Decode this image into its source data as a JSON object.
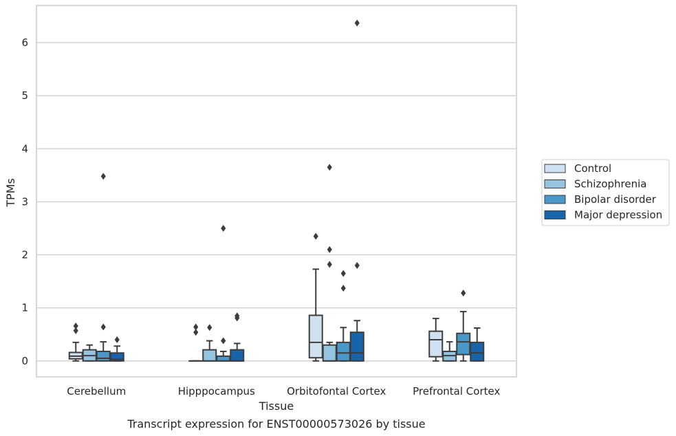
{
  "chart_data": {
    "type": "box",
    "caption": "Transcript expression for ENST00000573026 by tissue",
    "xlabel": "Tissue",
    "ylabel": "TPMs",
    "ylim": [
      -0.3,
      6.7
    ],
    "yticks": [
      0,
      1,
      2,
      3,
      4,
      5,
      6
    ],
    "grid": "horizontal",
    "legend_position": "right",
    "categories": [
      "Cerebellum",
      "Hipppocampus",
      "Orbitofontal Cortex",
      "Prefrontal Cortex"
    ],
    "series": [
      {
        "name": "Control",
        "color": "#d0e1f2",
        "boxes": [
          {
            "whislo": 0.0,
            "q1": 0.04,
            "med": 0.09,
            "q3": 0.16,
            "whishi": 0.35,
            "fliers": [
              0.57,
              0.66
            ]
          },
          {
            "whislo": 0.0,
            "q1": 0.0,
            "med": 0.0,
            "q3": 0.0,
            "whishi": 0.0,
            "fliers": [
              0.54,
              0.64
            ]
          },
          {
            "whislo": 0.0,
            "q1": 0.06,
            "med": 0.35,
            "q3": 0.86,
            "whishi": 1.73,
            "fliers": [
              2.35
            ]
          },
          {
            "whislo": 0.0,
            "q1": 0.08,
            "med": 0.4,
            "q3": 0.56,
            "whishi": 0.8,
            "fliers": []
          }
        ]
      },
      {
        "name": "Schizophrenia",
        "color": "#94c4df",
        "boxes": [
          {
            "whislo": 0.0,
            "q1": 0.0,
            "med": 0.1,
            "q3": 0.21,
            "whishi": 0.3,
            "fliers": []
          },
          {
            "whislo": 0.0,
            "q1": 0.0,
            "med": 0.0,
            "q3": 0.21,
            "whishi": 0.38,
            "fliers": [
              0.63
            ]
          },
          {
            "whislo": 0.0,
            "q1": 0.0,
            "med": 0.0,
            "q3": 0.3,
            "whishi": 0.35,
            "fliers": [
              1.82,
              2.1,
              3.65
            ]
          },
          {
            "whislo": 0.0,
            "q1": 0.0,
            "med": 0.1,
            "q3": 0.18,
            "whishi": 0.36,
            "fliers": []
          }
        ]
      },
      {
        "name": "Bipolar disorder",
        "color": "#4a98c9",
        "boxes": [
          {
            "whislo": 0.0,
            "q1": 0.0,
            "med": 0.05,
            "q3": 0.18,
            "whishi": 0.36,
            "fliers": [
              0.64,
              3.48
            ]
          },
          {
            "whislo": 0.0,
            "q1": 0.0,
            "med": 0.0,
            "q3": 0.09,
            "whishi": 0.18,
            "fliers": [
              0.38,
              2.5
            ]
          },
          {
            "whislo": 0.0,
            "q1": 0.0,
            "med": 0.15,
            "q3": 0.35,
            "whishi": 0.63,
            "fliers": [
              1.37,
              1.65
            ]
          },
          {
            "whislo": 0.0,
            "q1": 0.12,
            "med": 0.36,
            "q3": 0.52,
            "whishi": 0.93,
            "fliers": [
              1.28
            ]
          }
        ]
      },
      {
        "name": "Major depression",
        "color": "#1764ab",
        "boxes": [
          {
            "whislo": 0.0,
            "q1": 0.0,
            "med": 0.03,
            "q3": 0.15,
            "whishi": 0.28,
            "fliers": [
              0.4
            ]
          },
          {
            "whislo": 0.0,
            "q1": 0.0,
            "med": 0.0,
            "q3": 0.21,
            "whishi": 0.33,
            "fliers": [
              0.81,
              0.85
            ]
          },
          {
            "whislo": 0.0,
            "q1": 0.0,
            "med": 0.15,
            "q3": 0.54,
            "whishi": 0.76,
            "fliers": [
              1.8,
              6.37
            ]
          },
          {
            "whislo": 0.0,
            "q1": 0.0,
            "med": 0.15,
            "q3": 0.35,
            "whishi": 0.62,
            "fliers": []
          }
        ]
      }
    ]
  }
}
